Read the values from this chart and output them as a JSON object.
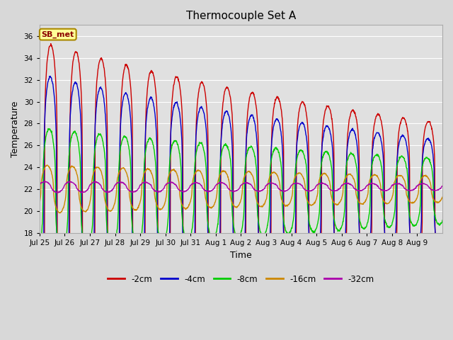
{
  "title": "Thermocouple Set A",
  "xlabel": "Time",
  "ylabel": "Temperature",
  "ylim": [
    18,
    37
  ],
  "yticks": [
    18,
    20,
    22,
    24,
    26,
    28,
    30,
    32,
    34,
    36
  ],
  "colors": {
    "-2cm": "#cc0000",
    "-4cm": "#0000cc",
    "-8cm": "#00cc00",
    "-16cm": "#cc8800",
    "-32cm": "#aa00aa"
  },
  "fig_bg": "#d8d8d8",
  "plot_bg": "#e0e0e0",
  "annotation_text": "SB_met",
  "annotation_bg": "#ffff99",
  "annotation_border": "#aa8800",
  "tick_labels": [
    "Jul 25",
    "Jul 26",
    "Jul 27",
    "Jul 28",
    "Jul 29",
    "Jul 30",
    "Jul 31",
    "Aug 1",
    "Aug 2",
    "Aug 3",
    "Aug 4",
    "Aug 5",
    "Aug 6",
    "Aug 7",
    "Aug 8",
    "Aug 9"
  ],
  "n_days": 16
}
